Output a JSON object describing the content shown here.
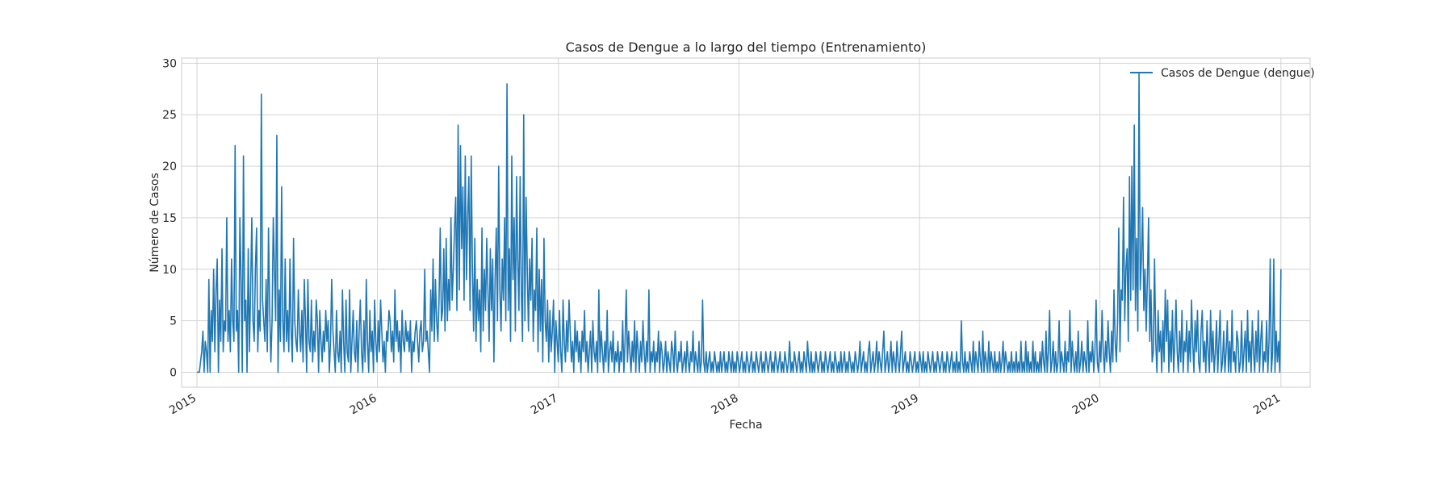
{
  "chart_data": {
    "type": "line",
    "title": "Casos de Dengue a lo largo del tiempo (Entrenamiento)",
    "xlabel": "Fecha",
    "ylabel": "Número de Casos",
    "xlim": [
      "2014-12-01",
      "2021-03-01"
    ],
    "ylim": [
      -1.45,
      30.5
    ],
    "y_ticks": [
      0,
      5,
      10,
      15,
      20,
      25,
      30
    ],
    "x_ticks": [
      {
        "label": "2015",
        "date": "2015-01-01"
      },
      {
        "label": "2016",
        "date": "2016-01-01"
      },
      {
        "label": "2017",
        "date": "2017-01-01"
      },
      {
        "label": "2018",
        "date": "2018-01-01"
      },
      {
        "label": "2019",
        "date": "2019-01-01"
      },
      {
        "label": "2020",
        "date": "2020-01-01"
      },
      {
        "label": "2021",
        "date": "2021-01-01"
      }
    ],
    "grid": true,
    "legend_position": "top-right",
    "series": [
      {
        "name": "Casos de Dengue (dengue)",
        "color": "#1f77b4",
        "start_date": "2015-01-01",
        "frequency": "daily",
        "values": [
          0,
          0,
          0,
          1,
          2,
          4,
          0,
          3,
          2,
          0,
          9,
          0,
          6,
          3,
          10,
          2,
          8,
          11,
          0,
          7,
          3,
          12,
          2,
          5,
          4,
          15,
          3,
          6,
          2,
          11,
          5,
          3,
          22,
          4,
          6,
          0,
          15,
          9,
          0,
          21,
          5,
          7,
          0,
          12,
          2,
          8,
          15,
          5,
          3,
          10,
          14,
          2,
          6,
          4,
          27,
          7,
          5,
          3,
          9,
          2,
          14,
          6,
          1,
          5,
          15,
          10,
          5,
          23,
          0,
          8,
          3,
          18,
          5,
          2,
          11,
          3,
          6,
          2,
          11,
          4,
          1,
          13,
          5,
          3,
          2,
          8,
          4,
          2,
          6,
          1,
          9,
          5,
          0,
          9,
          3,
          2,
          7,
          1,
          4,
          2,
          7,
          5,
          0,
          6,
          3,
          1,
          4,
          2,
          6,
          3,
          5,
          0,
          3,
          9,
          4,
          2,
          0,
          6,
          2,
          1,
          4,
          0,
          8,
          3,
          0,
          7,
          2,
          1,
          8,
          0,
          3,
          6,
          2,
          1,
          5,
          0,
          4,
          7,
          2,
          0,
          5,
          1,
          9,
          3,
          0,
          6,
          2,
          4,
          0,
          7,
          3,
          1,
          5,
          2,
          7,
          4,
          1,
          3,
          0,
          4,
          3,
          6,
          5,
          2,
          4,
          1,
          8,
          3,
          5,
          2,
          4,
          0,
          6,
          3,
          2,
          5,
          3,
          4,
          2,
          5,
          0,
          3,
          2,
          4,
          5,
          3,
          1,
          4,
          5,
          2,
          3,
          10,
          3,
          4,
          2,
          0,
          8,
          4,
          11,
          3,
          9,
          5,
          3,
          7,
          14,
          5,
          6,
          12,
          4,
          13,
          5,
          9,
          6,
          15,
          7,
          10,
          14,
          17,
          6,
          24,
          8,
          22,
          12,
          18,
          7,
          21,
          9,
          15,
          19,
          6,
          21,
          10,
          4,
          13,
          3,
          9,
          5,
          8,
          2,
          14,
          4,
          10,
          6,
          13,
          8,
          3,
          12,
          6,
          11,
          1,
          9,
          14,
          5,
          20,
          8,
          4,
          11,
          7,
          15,
          5,
          28,
          6,
          12,
          3,
          21,
          9,
          15,
          4,
          19,
          11,
          6,
          19,
          8,
          3,
          25,
          5,
          17,
          10,
          4,
          11,
          7,
          13,
          3,
          8,
          6,
          14,
          2,
          10,
          4,
          9,
          1,
          13,
          5,
          3,
          7,
          1,
          6,
          2,
          4,
          7,
          0,
          5,
          3,
          1,
          6,
          2,
          0,
          7,
          3,
          1,
          5,
          2,
          7,
          4,
          1,
          3,
          0,
          5,
          2,
          4,
          1,
          3,
          0,
          4,
          2,
          6,
          1,
          3,
          0,
          2,
          4,
          0,
          5,
          2,
          1,
          3,
          0,
          8,
          1,
          4,
          2,
          0,
          3,
          1,
          6,
          0,
          2,
          3,
          1,
          4,
          0,
          2,
          1,
          3,
          0,
          2,
          1,
          5,
          0,
          3,
          8,
          1,
          4,
          2,
          0,
          3,
          1,
          5,
          0,
          4,
          2,
          0,
          3,
          1,
          5,
          2,
          0,
          3,
          1,
          8,
          0,
          2,
          1,
          3,
          0,
          2,
          1,
          4,
          0,
          3,
          2,
          0,
          1,
          3,
          0,
          2,
          1,
          0,
          3,
          2,
          0,
          4,
          1,
          0,
          2,
          1,
          3,
          0,
          1,
          2,
          0,
          3,
          1,
          0,
          2,
          1,
          4,
          0,
          2,
          1,
          0,
          3,
          0,
          1,
          7,
          1,
          0,
          2,
          0,
          1,
          2,
          0,
          1,
          0,
          2,
          1,
          0,
          1,
          0,
          2,
          0,
          1,
          2,
          0,
          1,
          0,
          2,
          1,
          0,
          2,
          0,
          1,
          0,
          2,
          1,
          0,
          1,
          2,
          0,
          1,
          0,
          2,
          1,
          0,
          1,
          2,
          0,
          1,
          0,
          2,
          1,
          0,
          1,
          2,
          0,
          1,
          0,
          2,
          1,
          0,
          1,
          2,
          0,
          1,
          0,
          2,
          1,
          0,
          1,
          2,
          0,
          1,
          0,
          2,
          1,
          0,
          1,
          3,
          0,
          1,
          0,
          2,
          1,
          0,
          1,
          2,
          0,
          1,
          0,
          2,
          1,
          0,
          3,
          1,
          0,
          2,
          0,
          1,
          0,
          2,
          1,
          0,
          1,
          2,
          0,
          1,
          0,
          2,
          1,
          0,
          1,
          2,
          0,
          1,
          0,
          2,
          1,
          0,
          1,
          0,
          2,
          0,
          1,
          2,
          0,
          1,
          0,
          2,
          1,
          0,
          1,
          0,
          2,
          1,
          0,
          1,
          3,
          0,
          1,
          2,
          0,
          1,
          0,
          2,
          3,
          0,
          1,
          2,
          0,
          1,
          3,
          0,
          2,
          1,
          0,
          2,
          4,
          0,
          1,
          2,
          0,
          1,
          3,
          0,
          2,
          1,
          0,
          3,
          1,
          0,
          2,
          4,
          0,
          1,
          2,
          0,
          1,
          0,
          2,
          1,
          0,
          1,
          2,
          0,
          1,
          0,
          2,
          1,
          0,
          2,
          0,
          1,
          0,
          2,
          1,
          0,
          1,
          2,
          0,
          1,
          0,
          2,
          1,
          0,
          1,
          2,
          0,
          1,
          0,
          2,
          1,
          0,
          1,
          2,
          0,
          1,
          0,
          2,
          0,
          1,
          0,
          5,
          1,
          0,
          2,
          0,
          1,
          0,
          2,
          1,
          0,
          3,
          0,
          2,
          1,
          0,
          3,
          1,
          0,
          4,
          0,
          2,
          1,
          0,
          3,
          0,
          2,
          1,
          0,
          2,
          0,
          1,
          0,
          2,
          0,
          1,
          3,
          0,
          2,
          1,
          0,
          1,
          0,
          2,
          0,
          1,
          0,
          2,
          0,
          1,
          0,
          3,
          0,
          1,
          0,
          3,
          0,
          2,
          0,
          1,
          0,
          3,
          0,
          2,
          0,
          1,
          0,
          2,
          0,
          3,
          1,
          0,
          4,
          0,
          2,
          6,
          0,
          1,
          3,
          0,
          2,
          0,
          1,
          5,
          0,
          2,
          1,
          0,
          3,
          0,
          2,
          1,
          6,
          0,
          3,
          1,
          0,
          2,
          0,
          4,
          0,
          1,
          3,
          0,
          2,
          1,
          0,
          5,
          0,
          2,
          1,
          3,
          0,
          2,
          7,
          1,
          0,
          3,
          1,
          6,
          2,
          0,
          3,
          1,
          5,
          2,
          0,
          4,
          1,
          8,
          3,
          1,
          5,
          14,
          2,
          8,
          7,
          17,
          5,
          10,
          12,
          3,
          19,
          7,
          20,
          8,
          24,
          6,
          13,
          4,
          29,
          8,
          11,
          16,
          6,
          10,
          4,
          9,
          15,
          3,
          8,
          1,
          2,
          11,
          3,
          0,
          6,
          2,
          4,
          0,
          5,
          1,
          8,
          3,
          7,
          0,
          4,
          1,
          6,
          0,
          3,
          7,
          2,
          0,
          4,
          1,
          6,
          0,
          3,
          2,
          5,
          0,
          4,
          1,
          7,
          3,
          0,
          5,
          2,
          6,
          1,
          0,
          4,
          6,
          1,
          3,
          0,
          5,
          2,
          0,
          6,
          1,
          4,
          0,
          2,
          5,
          0,
          3,
          6,
          0,
          1,
          4,
          0,
          2,
          5,
          0,
          3,
          0,
          6,
          1,
          2,
          0,
          4,
          3,
          0,
          1,
          5,
          0,
          2,
          4,
          0,
          6,
          1,
          3,
          0,
          5,
          2,
          0,
          4,
          1,
          6,
          0,
          3,
          5,
          0,
          2,
          1,
          5,
          0,
          3,
          11,
          0,
          2,
          11,
          0,
          4,
          1,
          3,
          0,
          10
        ]
      }
    ]
  }
}
